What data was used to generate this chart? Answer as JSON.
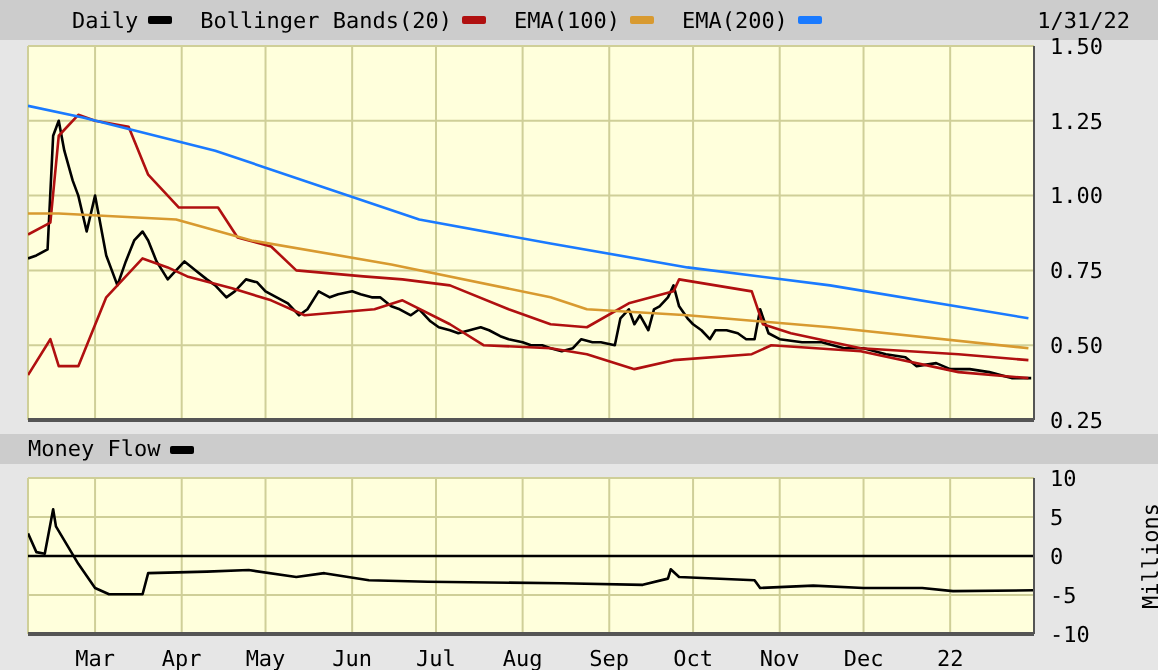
{
  "chart_data": [
    {
      "type": "line",
      "legend": "top",
      "grid": true,
      "tick_labels": "y",
      "annotations": [
        "1/31/22"
      ],
      "xlim": [
        "2021-02-05",
        "2022-01-31"
      ],
      "xticks": [
        {
          "value": "2021-03-01",
          "label": null
        },
        {
          "value": "2021-04-01",
          "label": null
        },
        {
          "value": "2021-05-01",
          "label": null
        },
        {
          "value": "2021-06-01",
          "label": null
        },
        {
          "value": "2021-07-01",
          "label": null
        },
        {
          "value": "2021-08-01",
          "label": null
        },
        {
          "value": "2021-09-01",
          "label": null
        },
        {
          "value": "2021-10-01",
          "label": null
        },
        {
          "value": "2021-11-01",
          "label": null
        },
        {
          "value": "2021-12-01",
          "label": null
        },
        {
          "value": "2022-01-01",
          "label": null
        }
      ],
      "ylim": [
        0.25,
        1.5
      ],
      "yticks": [
        {
          "value": 0.25,
          "label": "0.25"
        },
        {
          "value": 0.5,
          "label": "0.50"
        },
        {
          "value": 0.75,
          "label": "0.75"
        },
        {
          "value": 1,
          "label": "1.00"
        },
        {
          "value": 1.25,
          "label": "1.25"
        },
        {
          "value": 1.5,
          "label": "1.50"
        }
      ],
      "series": [
        {
          "name": "Daily",
          "color": "#000000",
          "x": [
            "2021-02-05",
            "2021-02-08",
            "2021-02-12",
            "2021-02-14",
            "2021-02-16",
            "2021-02-18",
            "2021-02-21",
            "2021-02-23",
            "2021-02-26",
            "2021-03-01",
            "2021-03-02",
            "2021-03-05",
            "2021-03-07",
            "2021-03-09",
            "2021-03-12",
            "2021-03-15",
            "2021-03-18",
            "2021-03-20",
            "2021-03-23",
            "2021-03-27",
            "2021-03-30",
            "2021-04-02",
            "2021-04-06",
            "2021-04-10",
            "2021-04-13",
            "2021-04-17",
            "2021-04-20",
            "2021-04-24",
            "2021-04-28",
            "2021-05-01",
            "2021-05-05",
            "2021-05-09",
            "2021-05-13",
            "2021-05-16",
            "2021-05-20",
            "2021-05-24",
            "2021-05-27",
            "2021-06-01",
            "2021-06-04",
            "2021-06-08",
            "2021-06-11",
            "2021-06-15",
            "2021-06-18",
            "2021-06-22",
            "2021-06-25",
            "2021-06-29",
            "2021-07-02",
            "2021-07-06",
            "2021-07-09",
            "2021-07-13",
            "2021-07-17",
            "2021-07-20",
            "2021-07-24",
            "2021-07-27",
            "2021-08-01",
            "2021-08-04",
            "2021-08-08",
            "2021-08-11",
            "2021-08-15",
            "2021-08-19",
            "2021-08-22",
            "2021-08-26",
            "2021-08-29",
            "2021-09-03",
            "2021-09-05",
            "2021-09-08",
            "2021-09-10",
            "2021-09-12",
            "2021-09-15",
            "2021-09-17",
            "2021-09-19",
            "2021-09-22",
            "2021-09-24",
            "2021-09-26",
            "2021-09-29",
            "2021-10-01",
            "2021-10-04",
            "2021-10-07",
            "2021-10-09",
            "2021-10-13",
            "2021-10-17",
            "2021-10-20",
            "2021-10-23",
            "2021-10-25",
            "2021-10-28",
            "2021-11-01",
            "2021-11-09",
            "2021-11-16",
            "2021-11-24",
            "2021-12-01",
            "2021-12-09",
            "2021-12-16",
            "2021-12-20",
            "2021-12-27",
            "2022-01-01",
            "2022-01-08",
            "2022-01-15",
            "2022-01-19",
            "2022-01-23",
            "2022-01-27",
            "2022-01-30"
          ],
          "values": [
            0.79,
            0.8,
            0.82,
            1.2,
            1.25,
            1.15,
            1.05,
            1.0,
            0.88,
            1.0,
            0.95,
            0.8,
            0.75,
            0.7,
            0.78,
            0.85,
            0.88,
            0.85,
            0.78,
            0.72,
            0.75,
            0.78,
            0.75,
            0.72,
            0.7,
            0.66,
            0.68,
            0.72,
            0.71,
            0.68,
            0.66,
            0.64,
            0.6,
            0.62,
            0.68,
            0.66,
            0.67,
            0.68,
            0.67,
            0.66,
            0.66,
            0.63,
            0.62,
            0.6,
            0.62,
            0.58,
            0.56,
            0.55,
            0.54,
            0.55,
            0.56,
            0.55,
            0.53,
            0.52,
            0.51,
            0.5,
            0.5,
            0.49,
            0.48,
            0.49,
            0.52,
            0.51,
            0.51,
            0.5,
            0.59,
            0.62,
            0.57,
            0.6,
            0.55,
            0.62,
            0.63,
            0.66,
            0.7,
            0.63,
            0.59,
            0.57,
            0.55,
            0.52,
            0.55,
            0.55,
            0.54,
            0.52,
            0.52,
            0.62,
            0.54,
            0.52,
            0.51,
            0.51,
            0.49,
            0.49,
            0.47,
            0.46,
            0.43,
            0.44,
            0.42,
            0.42,
            0.41,
            0.4,
            0.39,
            0.39,
            0.39
          ]
        },
        {
          "name": "Bollinger Bands(20)",
          "color": "#b01010",
          "x": [
            "2021-02-05",
            "2021-02-13",
            "2021-02-16",
            "2021-02-23",
            "2021-03-01",
            "2021-03-13",
            "2021-03-20",
            "2021-03-31",
            "2021-04-14",
            "2021-04-21",
            "2021-05-03",
            "2021-05-12",
            "2021-06-05",
            "2021-06-19",
            "2021-07-06",
            "2021-07-27",
            "2021-08-11",
            "2021-08-24",
            "2021-09-08",
            "2021-09-24",
            "2021-09-26",
            "2021-10-22",
            "2021-10-26",
            "2021-11-05",
            "2021-11-30",
            "2022-01-04",
            "2022-01-29"
          ],
          "values": [
            0.87,
            0.91,
            1.2,
            1.27,
            1.25,
            1.23,
            1.07,
            0.96,
            0.96,
            0.86,
            0.83,
            0.75,
            0.73,
            0.72,
            0.7,
            0.62,
            0.57,
            0.56,
            0.64,
            0.68,
            0.72,
            0.68,
            0.57,
            0.54,
            0.49,
            0.47,
            0.45
          ]
        },
        {
          "color": "#b01010",
          "x": [
            "2021-02-05",
            "2021-02-13",
            "2021-02-16",
            "2021-02-23",
            "2021-03-05",
            "2021-03-18",
            "2021-03-27",
            "2021-04-03",
            "2021-04-19",
            "2021-05-03",
            "2021-05-15",
            "2021-06-09",
            "2021-06-19",
            "2021-07-06",
            "2021-07-18",
            "2021-08-11",
            "2021-08-24",
            "2021-09-10",
            "2021-09-24",
            "2021-10-22",
            "2021-10-29",
            "2021-11-30",
            "2022-01-04",
            "2022-01-29"
          ],
          "values": [
            0.4,
            0.52,
            0.43,
            0.43,
            0.66,
            0.79,
            0.76,
            0.73,
            0.69,
            0.65,
            0.6,
            0.62,
            0.65,
            0.57,
            0.5,
            0.49,
            0.47,
            0.42,
            0.45,
            0.47,
            0.5,
            0.48,
            0.41,
            0.39
          ]
        },
        {
          "name": "EMA(100)",
          "color": "#d89a30",
          "x": [
            "2021-02-05",
            "2021-02-16",
            "2021-03-30",
            "2021-04-26",
            "2021-06-15",
            "2021-08-11",
            "2021-08-24",
            "2021-09-29",
            "2021-11-19",
            "2022-01-29"
          ],
          "values": [
            0.94,
            0.94,
            0.92,
            0.85,
            0.77,
            0.66,
            0.62,
            0.6,
            0.56,
            0.49
          ]
        },
        {
          "name": "EMA(200)",
          "color": "#1a7aff",
          "x": [
            "2021-02-05",
            "2021-02-25",
            "2021-04-13",
            "2021-06-25",
            "2021-08-11",
            "2021-09-29",
            "2021-11-19",
            "2022-01-29"
          ],
          "values": [
            1.3,
            1.26,
            1.15,
            0.92,
            0.84,
            0.76,
            0.7,
            0.59
          ]
        }
      ]
    },
    {
      "type": "line",
      "legend": "top left",
      "grid": true,
      "ylabel": "Millions",
      "xlim": [
        "2021-02-05",
        "2022-01-31"
      ],
      "xticks": [
        {
          "value": "2021-03-01",
          "label": "Mar"
        },
        {
          "value": "2021-04-01",
          "label": "Apr"
        },
        {
          "value": "2021-05-01",
          "label": "May"
        },
        {
          "value": "2021-06-01",
          "label": "Jun"
        },
        {
          "value": "2021-07-01",
          "label": "Jul"
        },
        {
          "value": "2021-08-01",
          "label": "Aug"
        },
        {
          "value": "2021-09-01",
          "label": "Sep"
        },
        {
          "value": "2021-10-01",
          "label": "Oct"
        },
        {
          "value": "2021-11-01",
          "label": "Nov"
        },
        {
          "value": "2021-12-01",
          "label": "Dec"
        },
        {
          "value": "2022-01-01",
          "label": "22"
        }
      ],
      "ylim": [
        -10,
        10
      ],
      "yticks": [
        -10,
        -5,
        0,
        5,
        10
      ],
      "ref_lines": [
        {
          "axis": "y",
          "value": 0,
          "color": "#000000"
        }
      ],
      "series": [
        {
          "name": "Money Flow",
          "color": "#000000",
          "x": [
            "2021-02-05",
            "2021-02-08",
            "2021-02-11",
            "2021-02-14",
            "2021-02-15",
            "2021-02-19",
            "2021-02-23",
            "2021-03-01",
            "2021-03-06",
            "2021-03-18",
            "2021-03-20",
            "2021-04-10",
            "2021-04-25",
            "2021-05-12",
            "2021-05-22",
            "2021-06-07",
            "2021-06-28",
            "2021-08-15",
            "2021-09-13",
            "2021-09-22",
            "2021-09-23",
            "2021-09-26",
            "2021-10-23",
            "2021-10-25",
            "2021-11-13",
            "2021-12-01",
            "2021-12-22",
            "2022-01-02",
            "2022-01-31"
          ],
          "values": [
            2.9,
            0.5,
            0.3,
            6.0,
            3.8,
            1.4,
            -1.0,
            -4.1,
            -4.9,
            -4.9,
            -2.2,
            -2.0,
            -1.8,
            -2.7,
            -2.2,
            -3.1,
            -3.3,
            -3.5,
            -3.7,
            -2.9,
            -1.7,
            -2.7,
            -3.1,
            -4.1,
            -3.8,
            -4.1,
            -4.1,
            -4.5,
            -4.4
          ]
        }
      ]
    }
  ]
}
